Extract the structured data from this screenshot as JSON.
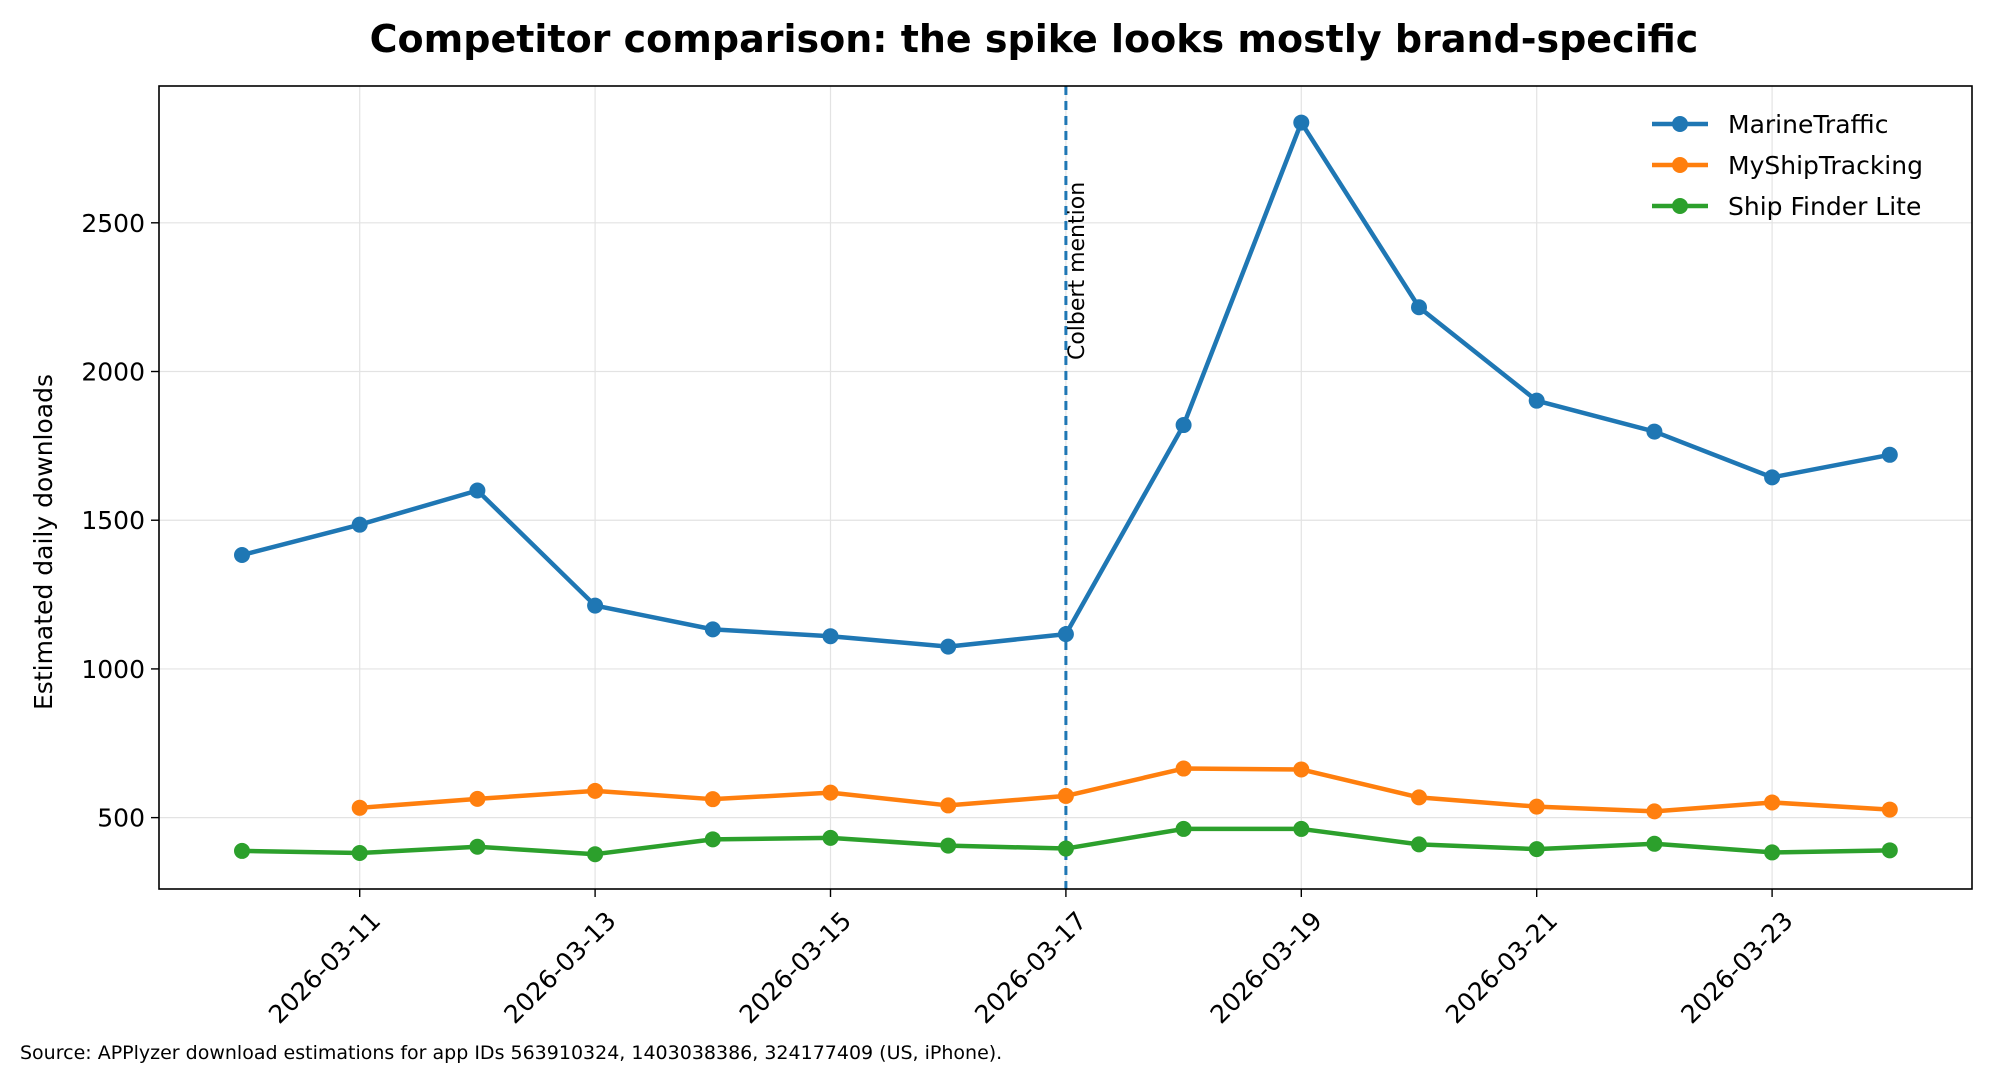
{
  "chart_data": {
    "type": "line",
    "title": "Competitor comparison: the spike looks mostly brand-specific",
    "xlabel": "",
    "ylabel": "Estimated daily downloads",
    "x": [
      "2026-03-10",
      "2026-03-11",
      "2026-03-12",
      "2026-03-13",
      "2026-03-14",
      "2026-03-15",
      "2026-03-16",
      "2026-03-17",
      "2026-03-18",
      "2026-03-19",
      "2026-03-20",
      "2026-03-21",
      "2026-03-22",
      "2026-03-23",
      "2026-03-24"
    ],
    "x_ticks": [
      "2026-03-11",
      "2026-03-13",
      "2026-03-15",
      "2026-03-17",
      "2026-03-19",
      "2026-03-21",
      "2026-03-23"
    ],
    "y_ticks": [
      500,
      1000,
      1500,
      2000,
      2500
    ],
    "ylim": [
      260,
      2960
    ],
    "grid": true,
    "legend_position": "top-right",
    "series": [
      {
        "name": "MarineTraffic",
        "color": "#1f77b4",
        "values": [
          1383,
          1485,
          1600,
          1213,
          1133,
          1110,
          1075,
          1117,
          1820,
          2837,
          2216,
          1902,
          1798,
          1644,
          1720
        ]
      },
      {
        "name": "MyShipTracking",
        "color": "#ff7f0e",
        "values": [
          null,
          533,
          563,
          590,
          562,
          584,
          541,
          573,
          665,
          662,
          568,
          537,
          521,
          551,
          527
        ]
      },
      {
        "name": "Ship Finder Lite",
        "color": "#2ca02c",
        "values": [
          388,
          381,
          402,
          377,
          427,
          432,
          406,
          396,
          462,
          462,
          410,
          394,
          412,
          383,
          390
        ]
      }
    ],
    "annotations": [
      {
        "x": "2026-03-17",
        "label": "Colbert mention",
        "style": "dashed",
        "color": "#1f77b4"
      }
    ],
    "footnote": "Source: APPlyzer download estimations for app IDs 563910324, 1403038386, 324177409 (US, iPhone)."
  }
}
